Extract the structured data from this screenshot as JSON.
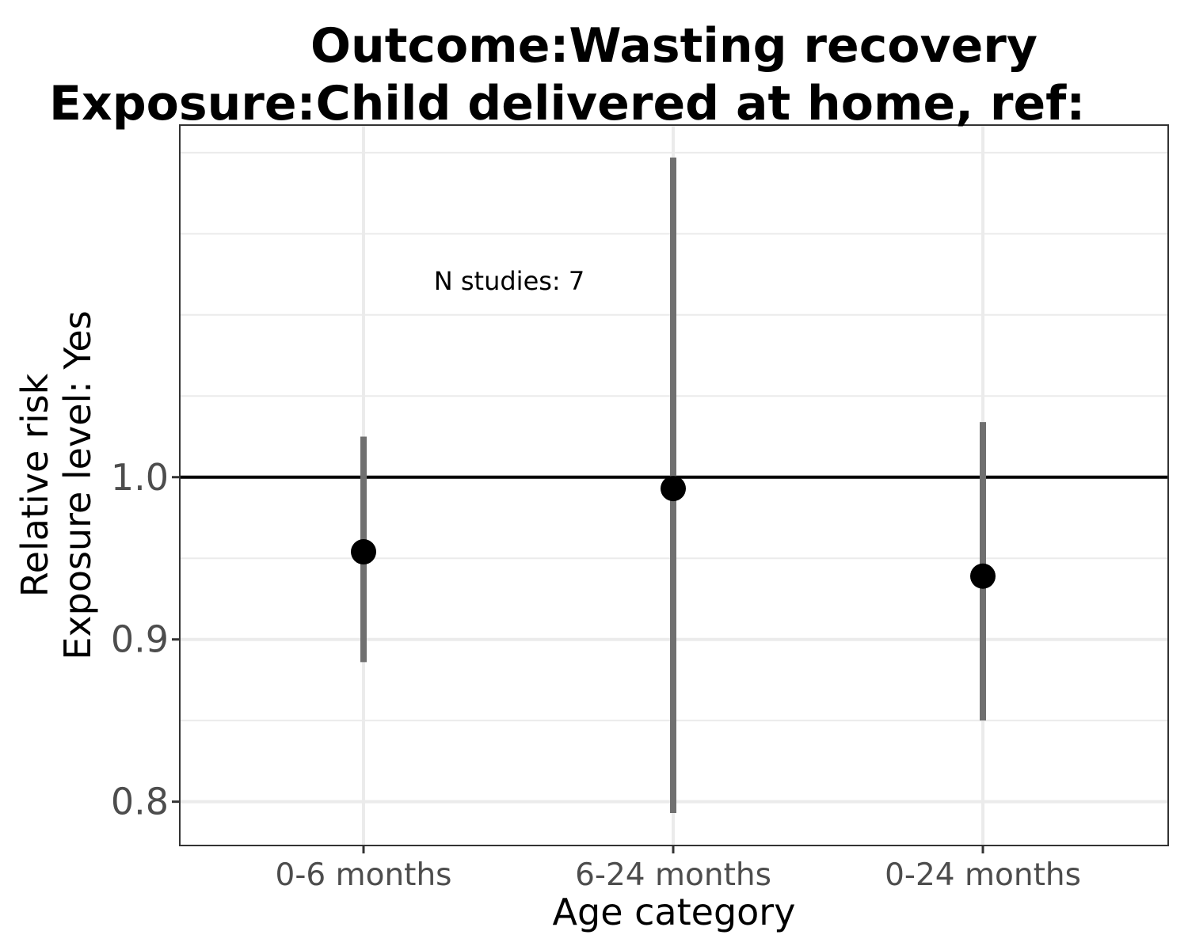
{
  "chart_data": {
    "type": "scatter",
    "title_lines": [
      "Outcome:Wasting recovery",
      "Exposure:Child delivered at home, ref:"
    ],
    "xlabel": "Age category",
    "ylabel_lines": [
      "Relative risk",
      "Exposure level: Yes"
    ],
    "categories": [
      "0-6 months",
      "6-24 months",
      "0-24 months"
    ],
    "estimates": [
      0.954,
      0.993,
      0.939
    ],
    "ci_lower": [
      0.886,
      0.793,
      0.85
    ],
    "ci_upper": [
      1.025,
      1.197,
      1.034
    ],
    "reference_line": 1.0,
    "yticks": [
      0.8,
      0.9,
      1.0
    ],
    "ytick_labels": [
      "0.8",
      "0.9",
      "1.0"
    ],
    "ylim": [
      0.773,
      1.217
    ],
    "annotation": "N studies: 7",
    "grid": true,
    "colors": {
      "point": "#000000",
      "errorbar": "#707070",
      "refline": "#000000",
      "grid": "#ebebeb",
      "panel_border": "#333333"
    }
  }
}
